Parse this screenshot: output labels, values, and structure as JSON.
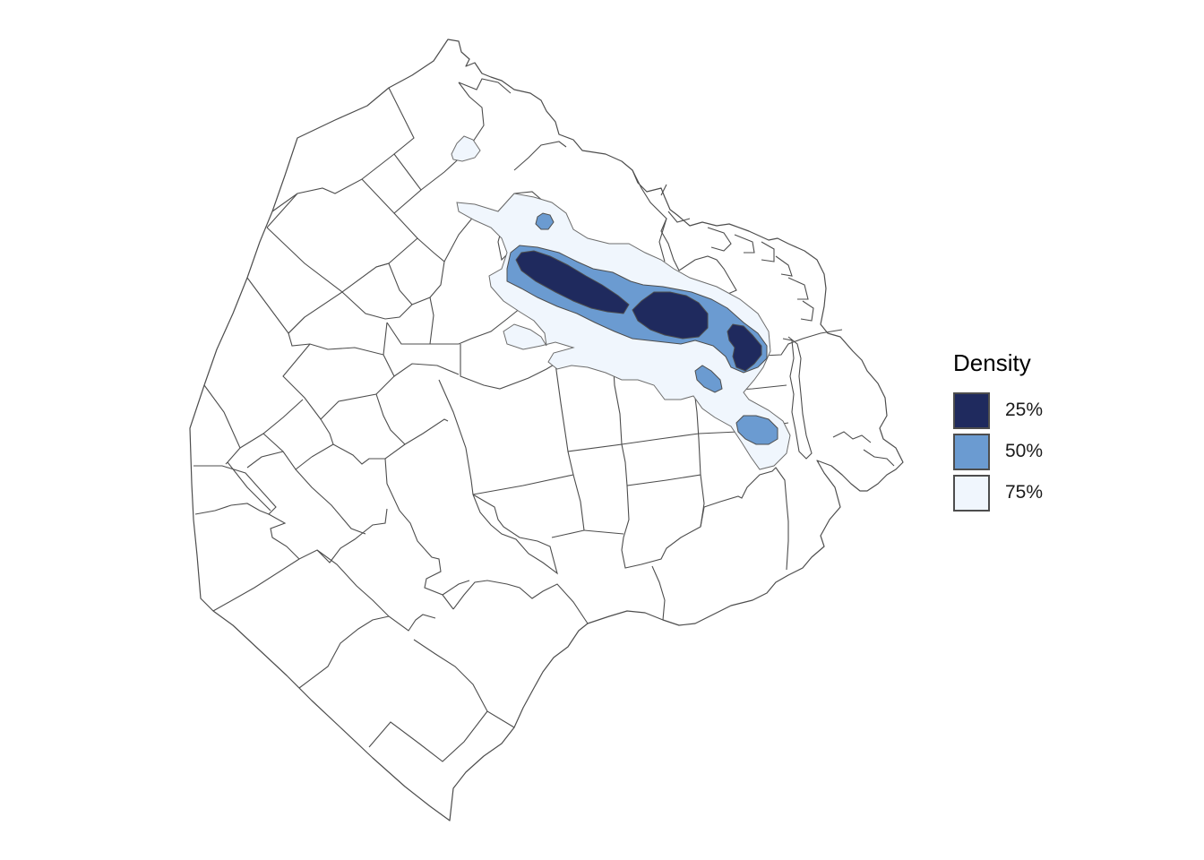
{
  "map": {
    "subject": "Buenos Aires city neighborhoods (barrios) with density contours",
    "region_fill": "#ffffff",
    "border_color": "#4d4d4d"
  },
  "legend": {
    "title": "Density",
    "items": [
      {
        "label": "25%",
        "color": "#1f2a5e"
      },
      {
        "label": "50%",
        "color": "#6b9bd1"
      },
      {
        "label": "75%",
        "color": "#f0f6fd"
      }
    ]
  }
}
